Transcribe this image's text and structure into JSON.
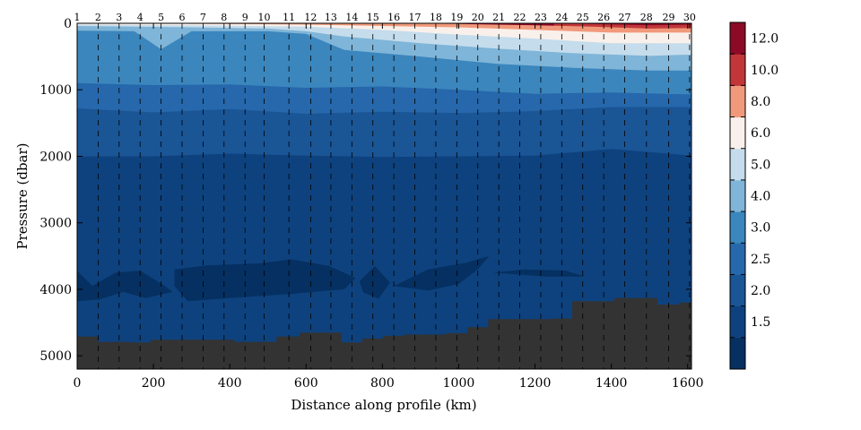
{
  "chart_data": {
    "type": "contour",
    "xlabel": "Distance along profile (km)",
    "ylabel": "Pressure (dbar)",
    "xlim": [
      0,
      1610
    ],
    "ylim": [
      5200,
      0
    ],
    "x_ticks": [
      0,
      200,
      400,
      600,
      800,
      1000,
      1200,
      1400,
      1600
    ],
    "x_tick_labels": [
      "0",
      "200",
      "400",
      "600",
      "800",
      "1000",
      "1200",
      "1400",
      "1600"
    ],
    "y_ticks": [
      0,
      1000,
      2000,
      3000,
      4000,
      5000
    ],
    "y_tick_labels": [
      "0",
      "1000",
      "2000",
      "3000",
      "4000",
      "5000"
    ],
    "stations": {
      "labels": [
        "1",
        "2",
        "3",
        "4",
        "5",
        "6",
        "7",
        "8",
        "9",
        "10",
        "11",
        "12",
        "13",
        "14",
        "15",
        "16",
        "17",
        "18",
        "19",
        "20",
        "21",
        "22",
        "23",
        "24",
        "25",
        "26",
        "27",
        "28",
        "29",
        "30"
      ],
      "distance_km": [
        0,
        55,
        110,
        165,
        220,
        275,
        330,
        385,
        440,
        490,
        555,
        612,
        665,
        720,
        775,
        830,
        885,
        940,
        995,
        1050,
        1105,
        1160,
        1215,
        1270,
        1325,
        1380,
        1435,
        1492,
        1550,
        1605
      ]
    },
    "colorbar": {
      "labels": [
        "12.0",
        "10.0",
        "8.0",
        "6.0",
        "5.0",
        "4.0",
        "3.0",
        "2.5",
        "2.0",
        "1.5"
      ],
      "levels_bottom_to_top": [
        1.5,
        2.0,
        2.5,
        3.0,
        4.0,
        5.0,
        6.0,
        8.0,
        10.0,
        12.0
      ],
      "colors_bottom_to_top": [
        "#053061",
        "#0e427e",
        "#1a5596",
        "#2668ab",
        "#3b86bd",
        "#7fb5d8",
        "#c4dcec",
        "#f9f0eb",
        "#f0997b",
        "#c13639",
        "#8c0a26"
      ]
    },
    "isotherms": [
      {
        "level": 2.0,
        "x": [
          0,
          200,
          400,
          600,
          800,
          1000,
          1200,
          1400,
          1610
        ],
        "depth": [
          2000,
          2000,
          1960,
          1990,
          2010,
          2000,
          1990,
          1890,
          1990
        ]
      },
      {
        "level": 2.5,
        "x": [
          0,
          200,
          400,
          600,
          800,
          1000,
          1200,
          1400,
          1610
        ],
        "depth": [
          1280,
          1340,
          1290,
          1360,
          1330,
          1350,
          1320,
          1260,
          1260
        ]
      },
      {
        "level": 3.0,
        "x": [
          0,
          200,
          400,
          600,
          800,
          1000,
          1200,
          1400,
          1610
        ],
        "depth": [
          900,
          930,
          920,
          970,
          950,
          1000,
          1060,
          1040,
          1070
        ]
      },
      {
        "level": 4.0,
        "x": [
          0,
          150,
          220,
          300,
          500,
          600,
          700,
          900,
          1100,
          1300,
          1500,
          1610
        ],
        "depth": [
          110,
          120,
          390,
          120,
          120,
          160,
          400,
          500,
          610,
          670,
          710,
          710
        ]
      },
      {
        "level": 5.0,
        "x": [
          0,
          300,
          500,
          600,
          700,
          900,
          1100,
          1300,
          1500,
          1610
        ],
        "depth": [
          40,
          60,
          80,
          120,
          200,
          300,
          380,
          450,
          490,
          470
        ]
      },
      {
        "level": 6.0,
        "x": [
          0,
          300,
          600,
          800,
          1000,
          1200,
          1400,
          1610
        ],
        "depth": [
          20,
          30,
          50,
          100,
          170,
          230,
          300,
          300
        ]
      },
      {
        "level": 8.0,
        "x": [
          0,
          400,
          600,
          800,
          1000,
          1200,
          1400,
          1610
        ],
        "depth": [
          0,
          10,
          20,
          40,
          60,
          100,
          140,
          140
        ]
      },
      {
        "level": 10.0,
        "x": [
          0,
          800,
          1000,
          1200,
          1350,
          1500,
          1610
        ],
        "depth": [
          0,
          0,
          10,
          30,
          50,
          80,
          70
        ]
      },
      {
        "level": 12.0,
        "x": [
          1250,
          1350,
          1500,
          1610
        ],
        "depth": [
          0,
          10,
          30,
          20
        ]
      }
    ],
    "cold_pools_below_1_5": [
      {
        "x": [
          0,
          40,
          100,
          165,
          230,
          250,
          180,
          120,
          60,
          0
        ],
        "depth": [
          3720,
          3950,
          3750,
          3720,
          3950,
          4040,
          4130,
          4040,
          4150,
          4180
        ]
      },
      {
        "x": [
          255,
          340,
          480,
          560,
          660,
          730,
          700,
          560,
          400,
          290,
          255
        ],
        "depth": [
          3700,
          3640,
          3610,
          3550,
          3650,
          3830,
          4000,
          4070,
          4130,
          4180,
          3950
        ]
      },
      {
        "x": [
          740,
          780,
          820,
          790,
          750,
          740
        ],
        "depth": [
          3880,
          3650,
          3900,
          4140,
          4050,
          3880
        ]
      },
      {
        "x": [
          830,
          920,
          1020,
          1080,
          1050,
          1000,
          920,
          830
        ],
        "depth": [
          3950,
          3700,
          3600,
          3500,
          3700,
          3920,
          4020,
          3950
        ]
      },
      {
        "x": [
          1090,
          1170,
          1280,
          1330,
          1230,
          1090
        ],
        "depth": [
          3750,
          3700,
          3720,
          3810,
          3810,
          3750
        ]
      }
    ],
    "seafloor": {
      "x": [
        0,
        110,
        165,
        220,
        275,
        330,
        385,
        440,
        490,
        555,
        612,
        665,
        720,
        775,
        830,
        885,
        940,
        995,
        1050,
        1105,
        1160,
        1215,
        1270,
        1325,
        1380,
        1435,
        1492,
        1550,
        1605
      ],
      "depth": [
        4710,
        4790,
        4800,
        4760,
        4760,
        4760,
        4760,
        4790,
        4790,
        4710,
        4650,
        4650,
        4800,
        4740,
        4700,
        4680,
        4680,
        4660,
        4570,
        4450,
        4450,
        4450,
        4440,
        4180,
        4180,
        4130,
        4130,
        4230,
        4200
      ],
      "color": "#333333"
    }
  }
}
